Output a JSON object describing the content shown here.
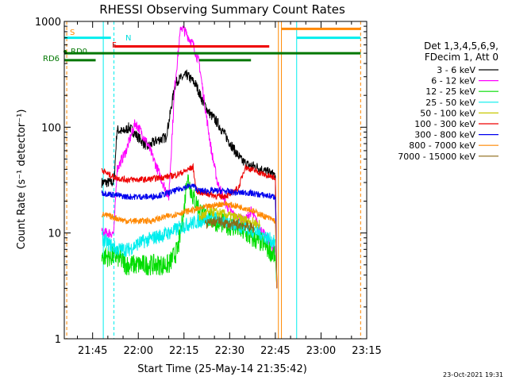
{
  "chart_data": {
    "type": "line",
    "title": "RHESSI Observing Summary Count Rates",
    "ylabel": "Count Rate (s⁻¹ detector⁻¹)",
    "xlabel": "Start Time (25-May-14 21:35:42)",
    "timestamp": "23-Oct-2021 19:31",
    "y_scale": "log",
    "ylim": [
      1,
      1000
    ],
    "xlim": [
      "21:35:42",
      "23:15:00"
    ],
    "x_ticks": [
      "21:45",
      "22:00",
      "22:15",
      "22:30",
      "22:45",
      "23:00",
      "23:15"
    ],
    "y_ticks": [
      "1",
      "10",
      "100",
      "1000"
    ],
    "legend": {
      "placement": "right",
      "header": [
        "Det 1,3,4,5,6,9,",
        "FDecim 1, Att 0"
      ],
      "entries": [
        {
          "label": "3 - 6 keV",
          "color": "#000000"
        },
        {
          "label": "6 - 12 keV",
          "color": "#ff00ff"
        },
        {
          "label": "12 - 25 keV",
          "color": "#00dd00"
        },
        {
          "label": "25 - 50 keV",
          "color": "#00eeee"
        },
        {
          "label": "50 - 100 keV",
          "color": "#c8c800"
        },
        {
          "label": "100 - 300 keV",
          "color": "#ee0000"
        },
        {
          "label": "300 - 800 keV",
          "color": "#0000ee"
        },
        {
          "label": "800 - 7000 keV",
          "color": "#ff8800"
        },
        {
          "label": "7000 - 15000 keV",
          "color": "#8b6914"
        }
      ]
    },
    "flag_labels": [
      {
        "text": "S",
        "color": "#ff8800"
      },
      {
        "text": "N",
        "color": "#00dddd"
      },
      {
        "text": "F",
        "color": "#ee0000"
      },
      {
        "text": "RD0",
        "color": "#007700"
      },
      {
        "text": "RD6",
        "color": "#007700"
      }
    ],
    "series": [
      {
        "name": "3 - 6 keV",
        "color": "#000000",
        "noise": 0.05,
        "x": [
          "21:48:00",
          "21:52:00",
          "21:53:00",
          "21:55:00",
          "21:57:00",
          "22:00:00",
          "22:03:00",
          "22:06:00",
          "22:09:00",
          "22:10:00",
          "22:12:00",
          "22:13:00",
          "22:16:00",
          "22:18:00",
          "22:19:00",
          "22:21:00",
          "22:23:00",
          "22:26:00",
          "22:29:00",
          "22:32:00",
          "22:34:00",
          "22:36:00",
          "22:39:00",
          "22:42:00",
          "22:45:00",
          "22:45:30"
        ],
        "y": [
          30,
          30,
          95,
          90,
          100,
          80,
          65,
          75,
          80,
          110,
          250,
          280,
          310,
          270,
          250,
          180,
          140,
          110,
          80,
          58,
          48,
          44,
          42,
          38,
          35,
          3
        ]
      },
      {
        "name": "6 - 12 keV",
        "color": "#ff00ff",
        "noise": 0.05,
        "x": [
          "21:48:00",
          "21:52:00",
          "21:53:00",
          "21:56:00",
          "21:59:00",
          "22:01:00",
          "22:03:00",
          "22:05:00",
          "22:08:00",
          "22:10:00",
          "22:12:00",
          "22:14:00",
          "22:16:00",
          "22:18:00",
          "22:20:00",
          "22:22:00",
          "22:24:00",
          "22:26:00",
          "22:29:00",
          "22:32:00",
          "22:35:00",
          "22:37:00",
          "22:40:00",
          "22:43:00",
          "22:45:00",
          "22:45:30"
        ],
        "y": [
          10,
          10,
          40,
          60,
          110,
          90,
          70,
          50,
          30,
          22,
          250,
          900,
          750,
          600,
          400,
          150,
          60,
          30,
          18,
          14,
          13,
          16,
          11,
          8,
          7,
          3
        ]
      },
      {
        "name": "12 - 25 keV",
        "color": "#00dd00",
        "noise": 0.1,
        "x": [
          "21:48:00",
          "21:50:00",
          "21:53:00",
          "21:56:00",
          "22:00:00",
          "22:05:00",
          "22:10:00",
          "22:13:00",
          "22:15:00",
          "22:16:00",
          "22:18:00",
          "22:21:00",
          "22:25:00",
          "22:29:00",
          "22:33:00",
          "22:37:00",
          "22:41:00",
          "22:45:00",
          "22:45:30"
        ],
        "y": [
          6,
          6,
          6,
          5,
          5,
          5,
          5,
          7,
          16,
          35,
          22,
          15,
          13,
          12,
          11,
          9,
          8,
          6,
          3
        ]
      },
      {
        "name": "25 - 50 keV",
        "color": "#00eeee",
        "noise": 0.07,
        "x": [
          "21:48:00",
          "21:50:00",
          "21:53:00",
          "21:57:00",
          "22:00:00",
          "22:05:00",
          "22:10:00",
          "22:13:00",
          "22:16:00",
          "22:20:00",
          "22:24:00",
          "22:28:00",
          "22:32:00",
          "22:36:00",
          "22:40:00",
          "22:45:00",
          "22:45:30"
        ],
        "y": [
          9,
          8,
          7,
          7,
          8,
          9,
          10,
          11,
          12,
          13,
          14,
          13,
          12,
          11,
          10,
          8,
          3
        ]
      },
      {
        "name": "50 - 100 keV",
        "color": "#c8c800",
        "noise": 0.05,
        "x": [
          "22:20:00",
          "22:24:00",
          "22:28:00",
          "22:32:00",
          "22:36:00",
          "22:40:00"
        ],
        "y": [
          14,
          16,
          15,
          14,
          13,
          12
        ]
      },
      {
        "name": "100 - 300 keV",
        "color": "#ee0000",
        "noise": 0.03,
        "x": [
          "21:48:00",
          "21:50:00",
          "21:53:00",
          "21:56:00",
          "22:00:00",
          "22:03:00",
          "22:06:00",
          "22:09:00",
          "22:12:00",
          "22:15:00",
          "22:18:00",
          "22:19:00",
          "22:21:00",
          "22:24:00",
          "22:27:00",
          "22:30:00",
          "22:33:00",
          "22:35:00",
          "22:39:00",
          "22:42:00",
          "22:45:00",
          "22:45:30"
        ],
        "y": [
          40,
          36,
          33,
          32,
          32,
          32,
          33,
          34,
          35,
          38,
          42,
          25,
          24,
          23,
          22,
          23,
          27,
          42,
          38,
          35,
          33,
          3
        ]
      },
      {
        "name": "300 - 800 keV",
        "color": "#0000ee",
        "noise": 0.03,
        "x": [
          "21:48:00",
          "21:52:00",
          "21:56:00",
          "22:00:00",
          "22:04:00",
          "22:08:00",
          "22:12:00",
          "22:15:00",
          "22:18:00",
          "22:20:00",
          "22:24:00",
          "22:28:00",
          "22:32:00",
          "22:36:00",
          "22:40:00",
          "22:45:00",
          "22:45:30"
        ],
        "y": [
          24,
          23,
          22,
          22,
          22,
          23,
          25,
          27,
          28,
          25,
          25,
          25,
          24,
          24,
          23,
          22,
          3
        ]
      },
      {
        "name": "800 - 7000 keV",
        "color": "#ff8800",
        "noise": 0.03,
        "x": [
          "21:48:00",
          "21:52:00",
          "21:56:00",
          "22:00:00",
          "22:04:00",
          "22:08:00",
          "22:12:00",
          "22:16:00",
          "22:20:00",
          "22:24:00",
          "22:28:00",
          "22:32:00",
          "22:36:00",
          "22:40:00",
          "22:45:00",
          "22:45:30"
        ],
        "y": [
          15,
          14,
          13,
          13,
          13,
          14,
          15,
          16,
          17,
          18,
          19,
          18,
          17,
          15,
          13,
          3
        ]
      },
      {
        "name": "7000 - 15000 keV",
        "color": "#8b6914",
        "noise": 0.05,
        "x": [
          "22:22:00",
          "22:26:00",
          "22:30:00",
          "22:34:00",
          "22:38:00"
        ],
        "y": [
          12,
          13,
          12,
          12,
          11
        ]
      }
    ],
    "flag_bars": [
      {
        "label": "S",
        "color": "#ff8800",
        "start": "22:47:00",
        "end": "23:13:00",
        "level": 850
      },
      {
        "label": "N",
        "color": "#00eeee",
        "start": "21:35:42",
        "end": "21:51:00",
        "level": 700
      },
      {
        "label": "N",
        "color": "#00eeee",
        "start": "22:52:00",
        "end": "23:13:00",
        "level": 700
      },
      {
        "label": "F",
        "color": "#ee0000",
        "start": "21:52:00",
        "end": "22:43:00",
        "level": 580
      },
      {
        "label": "RD0",
        "color": "#007700",
        "start": "21:35:42",
        "end": "23:13:00",
        "level": 500
      },
      {
        "label": "RD6",
        "color": "#007700",
        "start": "21:35:42",
        "end": "21:46:00",
        "level": 430
      },
      {
        "label": "RD6",
        "color": "#007700",
        "start": "22:20:00",
        "end": "22:37:00",
        "level": 430
      }
    ],
    "vertical_markers": [
      {
        "time": "21:36:30",
        "color": "#ff8800",
        "style": "dashed"
      },
      {
        "time": "21:48:30",
        "color": "#00eeee",
        "style": "solid"
      },
      {
        "time": "21:52:00",
        "color": "#00eeee",
        "style": "dashed"
      },
      {
        "time": "22:46:00",
        "color": "#ff8800",
        "style": "solid"
      },
      {
        "time": "22:47:00",
        "color": "#ff8800",
        "style": "solid"
      },
      {
        "time": "22:52:00",
        "color": "#00eeee",
        "style": "solid"
      },
      {
        "time": "23:13:00",
        "color": "#ff8800",
        "style": "dashed"
      }
    ]
  }
}
